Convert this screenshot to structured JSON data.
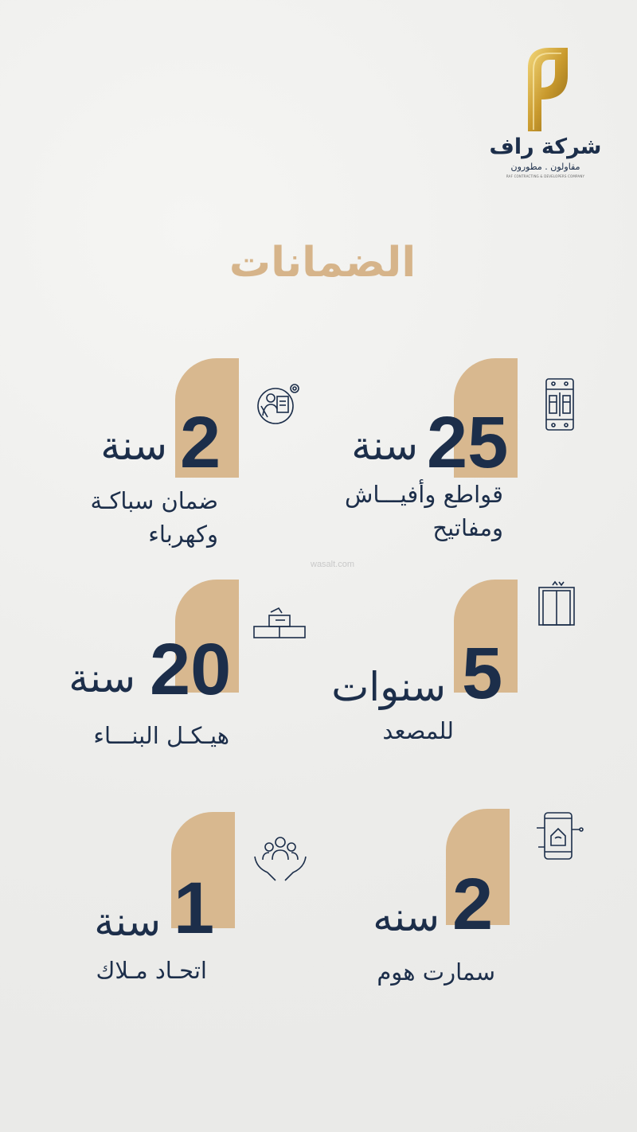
{
  "logo": {
    "name": "شركة راف",
    "tagline": "مقاولون . مطورون",
    "english": "RAF CONTRACTING & DEVELOPERS COMPANY",
    "color": "#d4a93c"
  },
  "title": "الضمانات",
  "watermark": "wasalt.com",
  "colors": {
    "accent": "#d8b88f",
    "navy": "#1c2e4a",
    "title": "#d6b48a"
  },
  "warranties": [
    {
      "number": "25",
      "unit": "سنة",
      "lines": [
        "قواطع وأفيـــاش",
        "ومفاتيح"
      ],
      "icon": "circuit-breaker-icon"
    },
    {
      "number": "2",
      "unit": "سنة",
      "lines": [
        "ضمان سباكـة",
        "وكهرباء"
      ],
      "icon": "plumber-electrician-icon"
    },
    {
      "number": "5",
      "unit": "سنوات",
      "lines": [
        "للمصعد"
      ],
      "icon": "elevator-icon"
    },
    {
      "number": "20",
      "unit": "سنة",
      "lines": [
        "هيـكـل البنـــاء"
      ],
      "icon": "building-structure-icon"
    },
    {
      "number": "2",
      "unit": "سنه",
      "lines": [
        "سمارت هوم"
      ],
      "icon": "smart-home-icon"
    },
    {
      "number": "1",
      "unit": "سنة",
      "lines": [
        "اتحـاد مـلاك"
      ],
      "icon": "owners-union-icon"
    }
  ]
}
